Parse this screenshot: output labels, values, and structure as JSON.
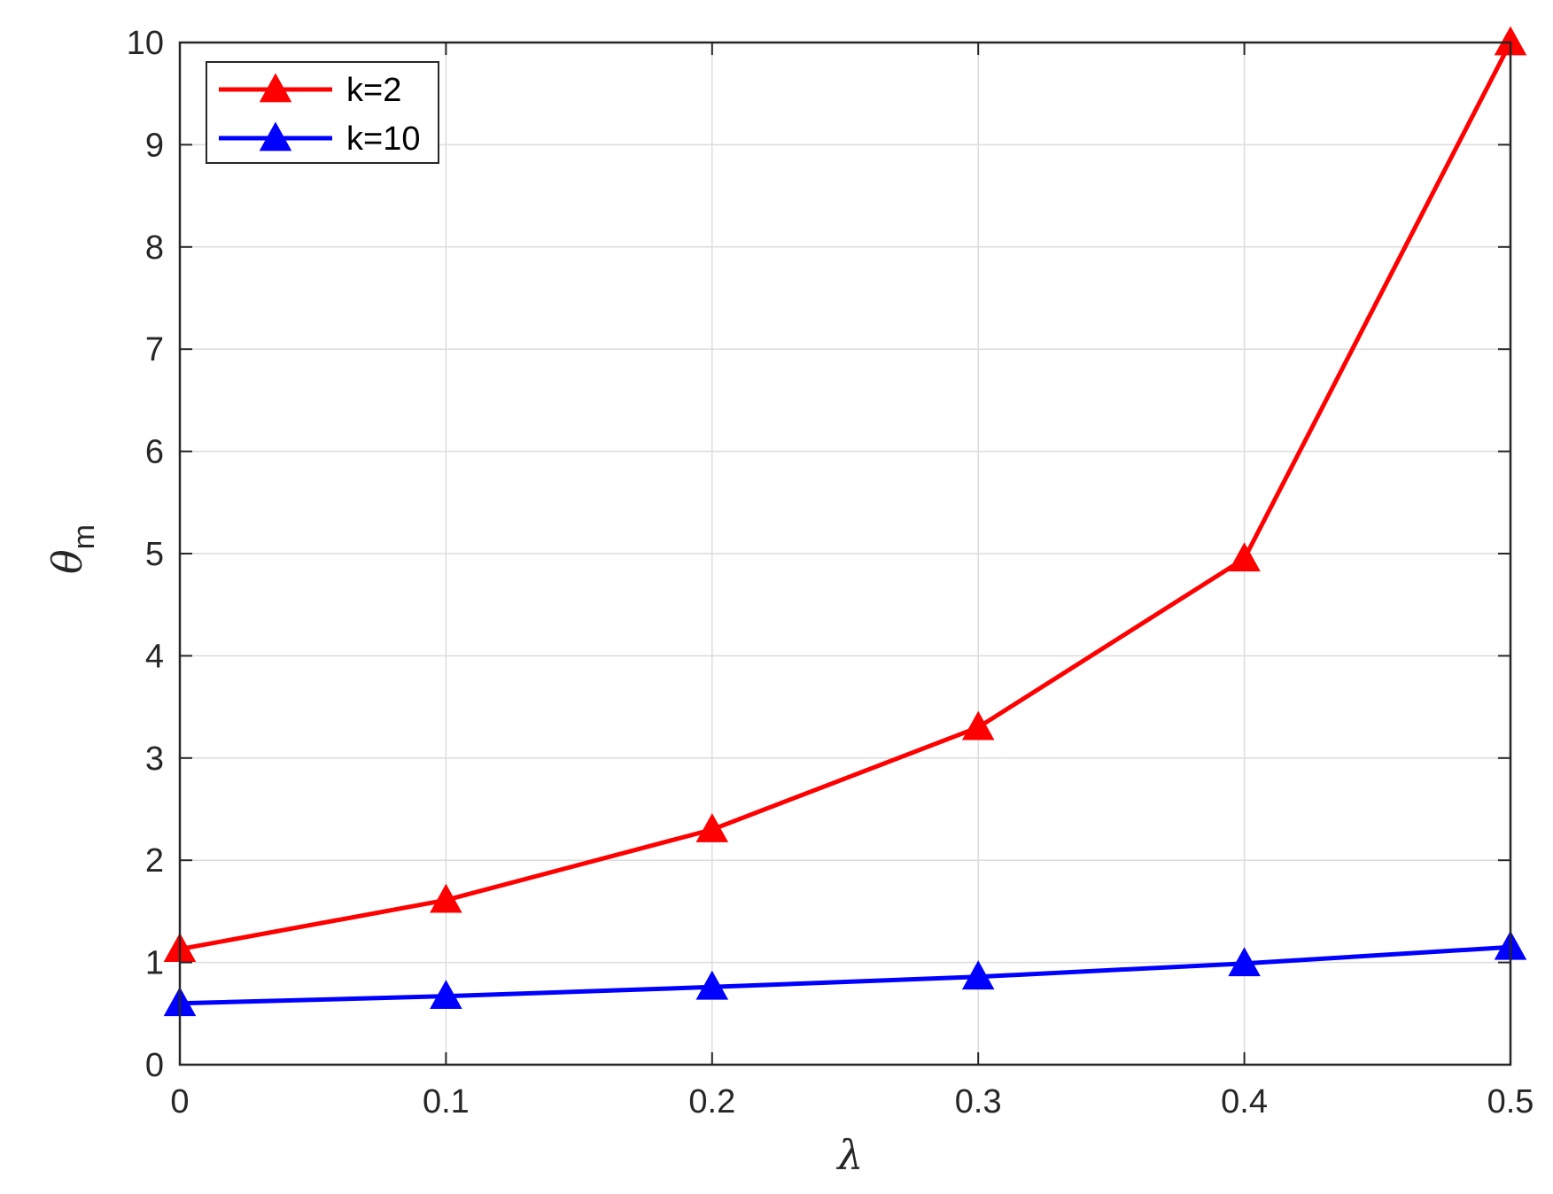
{
  "chart_data": {
    "type": "line",
    "title": "",
    "xlabel": "λ",
    "ylabel": "θ",
    "ylabel_subscript": "m",
    "xlim": [
      0,
      0.5
    ],
    "ylim": [
      0,
      10
    ],
    "xticks": [
      "0",
      "0.1",
      "0.2",
      "0.3",
      "0.4",
      "0.5"
    ],
    "yticks": [
      "0",
      "1",
      "2",
      "3",
      "4",
      "5",
      "6",
      "7",
      "8",
      "9",
      "10"
    ],
    "grid": true,
    "legend_position": "top-left",
    "x": [
      0,
      0.1,
      0.2,
      0.3,
      0.4,
      0.5
    ],
    "series": [
      {
        "name": "k=2",
        "color": "#ff0000",
        "marker": "triangle-up",
        "values": [
          1.13,
          1.61,
          2.3,
          3.3,
          4.95,
          10.0
        ]
      },
      {
        "name": "k=10",
        "color": "#0000ff",
        "marker": "triangle-up",
        "values": [
          0.6,
          0.67,
          0.76,
          0.86,
          0.99,
          1.15
        ]
      }
    ]
  }
}
